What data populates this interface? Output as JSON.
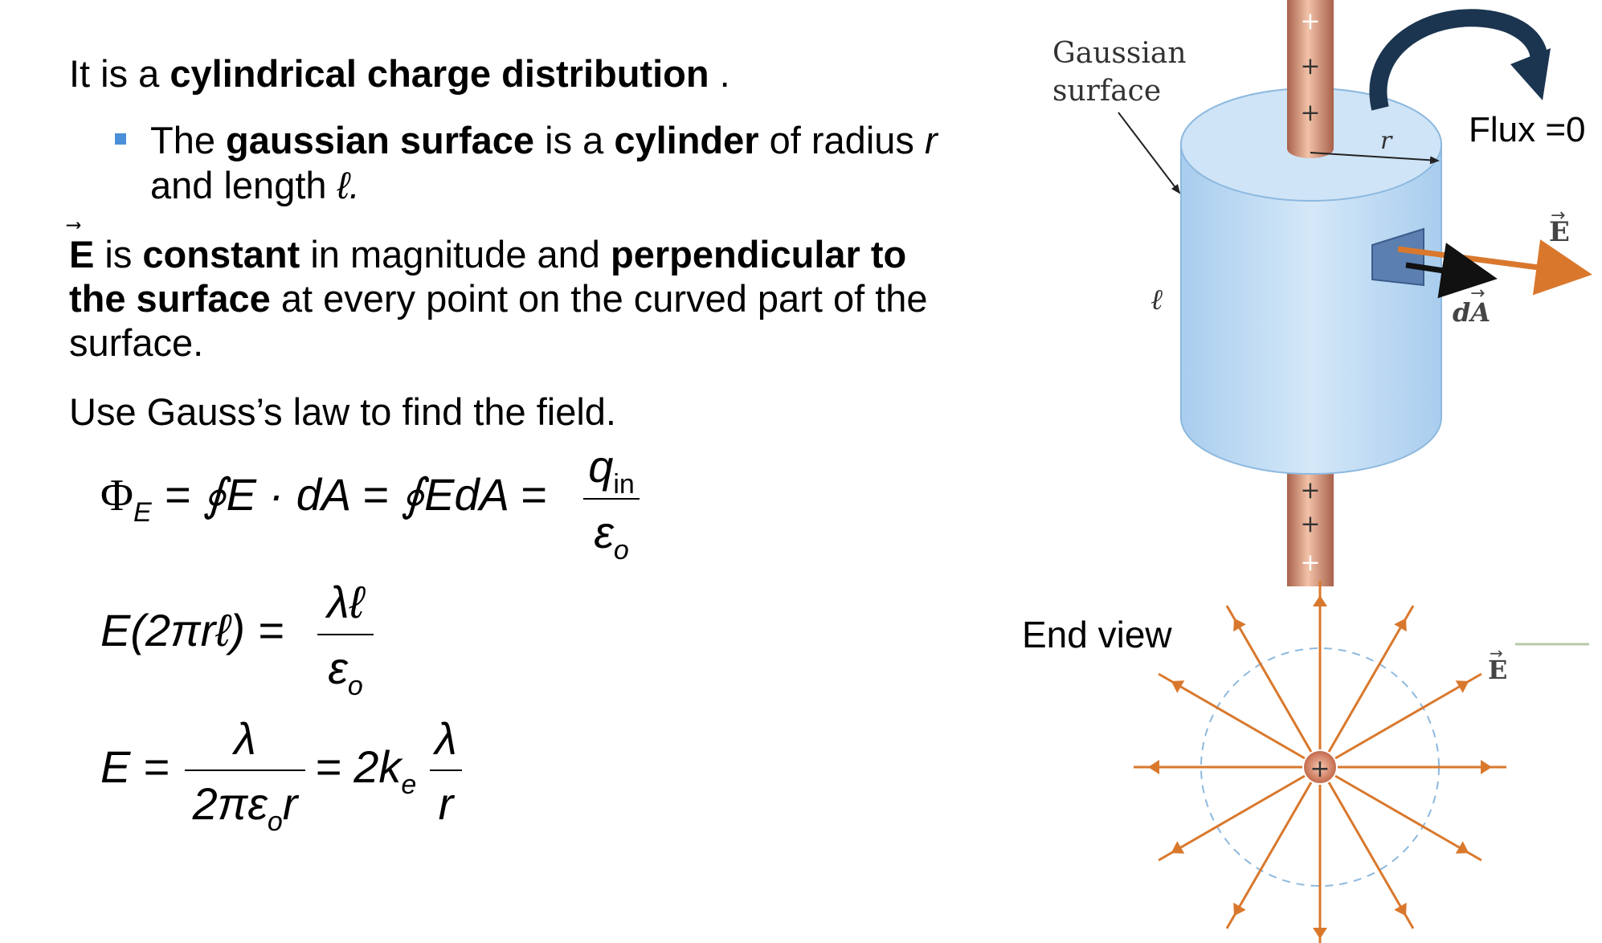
{
  "text": {
    "line1_a": "It is a ",
    "line1_b": "cylindrical charge distribution",
    "line1_c": " .",
    "bullet_a": "The ",
    "bullet_b": "gaussian surface",
    "bullet_c": " is a ",
    "bullet_d": "cylinder",
    "bullet_e": " of radius ",
    "bullet_r": "r",
    "bullet_f": "and length ",
    "bullet_l": "ℓ.",
    "p2_E": "E",
    "p2_a": " is ",
    "p2_b": "constant",
    "p2_c": " in magnitude and ",
    "p2_d": "perpendicular to",
    "p2_e": "the surface",
    "p2_f": " at every point on the curved part of the",
    "p2_g": "surface.",
    "p3": "Use Gauss’s law to find the field."
  },
  "equations": {
    "eq1_lhs": "Φ",
    "eq1_lhs_sub": "E",
    "eq1_mid": "= ∮E · dA = ∮EdA =",
    "eq1_num": "q",
    "eq1_num_sub": "in",
    "eq1_den": "ε",
    "eq1_den_sub": "o",
    "eq2_lhs": "E(2πrℓ) =",
    "eq2_num": "λℓ",
    "eq2_den": "ε",
    "eq2_den_sub": "o",
    "eq3_lhs": "E =",
    "eq3_num": "λ",
    "eq3_den": "2πε",
    "eq3_den_sub": "o",
    "eq3_den_r": "r",
    "eq3_mid": "= 2k",
    "eq3_mid_sub": "e",
    "eq3_num2": "λ",
    "eq3_den2": "r"
  },
  "diagram": {
    "gaussian_label_1": "Gaussian",
    "gaussian_label_2": "surface",
    "flux_label": "Flux =0",
    "r_label": "r",
    "l_label": "ℓ",
    "E_label_top": "E",
    "dA_label": "dA",
    "end_view_label": "End view",
    "E_label_end": "E",
    "plus": "+"
  },
  "colors": {
    "rod": "#c97b5b",
    "cylinder": "#bcd9f2",
    "cylinder_edge": "#8db9df",
    "field_arrow": "#d9782d",
    "flux_arrow": "#1b3550",
    "bullet": "#4a90d9"
  }
}
